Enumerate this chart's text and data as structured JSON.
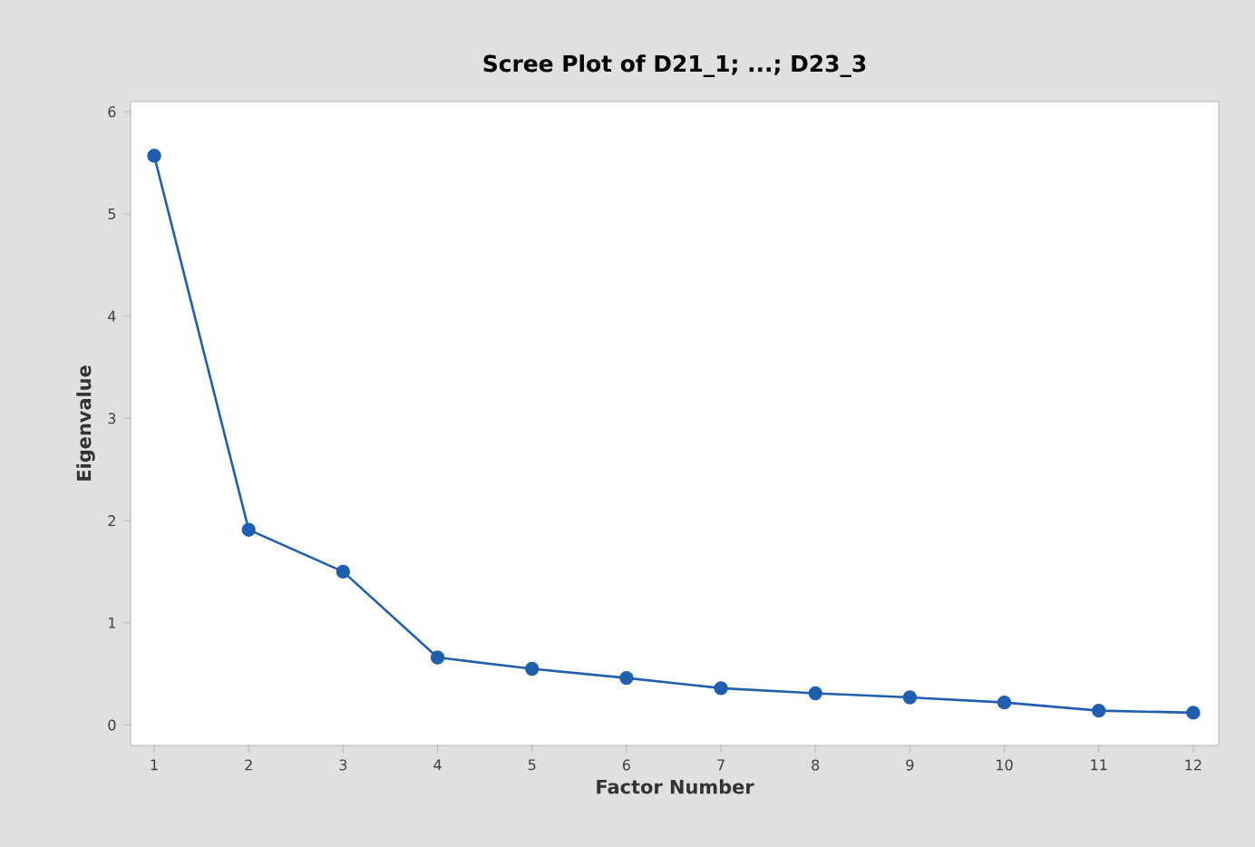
{
  "chart_data": {
    "type": "line",
    "title": "Scree Plot of D21_1; ...; D23_3",
    "xlabel": "Factor Number",
    "ylabel": "Eigenvalue",
    "x": [
      1,
      2,
      3,
      4,
      5,
      6,
      7,
      8,
      9,
      10,
      11,
      12
    ],
    "series": [
      {
        "color": "#1f5fae",
        "values": [
          5.57,
          1.91,
          1.5,
          0.66,
          0.55,
          0.46,
          0.36,
          0.31,
          0.27,
          0.22,
          0.14,
          0.12
        ]
      }
    ],
    "xlim": [
      0.75,
      12.27
    ],
    "ylim": [
      -0.2,
      6.1
    ],
    "xticks": [
      1,
      2,
      3,
      4,
      5,
      6,
      7,
      8,
      9,
      10,
      11,
      12
    ],
    "yticks": [
      0,
      1,
      2,
      3,
      4,
      5,
      6
    ],
    "grid": false,
    "marker": "circle",
    "line_style": "solid"
  }
}
